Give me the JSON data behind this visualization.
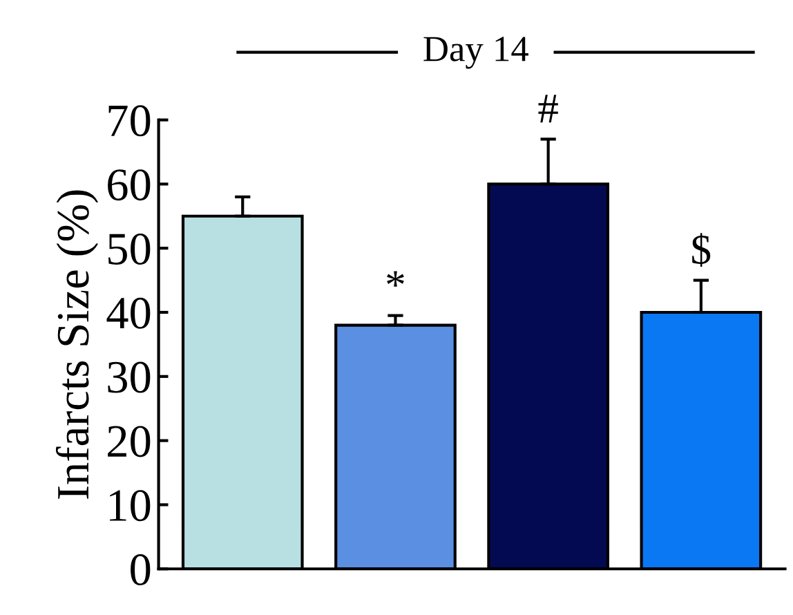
{
  "chart_data": {
    "type": "bar",
    "title": "Day 14",
    "ylabel": "Infarcts Size (%)",
    "categories": [
      null,
      null,
      null,
      null
    ],
    "values": [
      55,
      38,
      60,
      40
    ],
    "colors": [
      "#b8e0e2",
      "#5a8fe2",
      "#040a52",
      "#0a78f2"
    ],
    "errors": [
      [
        55,
        58
      ],
      [
        38,
        39.5
      ],
      [
        60,
        67
      ],
      [
        40,
        45
      ]
    ],
    "annotations": [
      "*",
      "#",
      "$"
    ],
    "ylim": [
      0,
      70
    ],
    "yticks": [
      0,
      10,
      20,
      30,
      40,
      50,
      60,
      70
    ],
    "tick_labels": "y",
    "grid": false,
    "legend": false
  }
}
